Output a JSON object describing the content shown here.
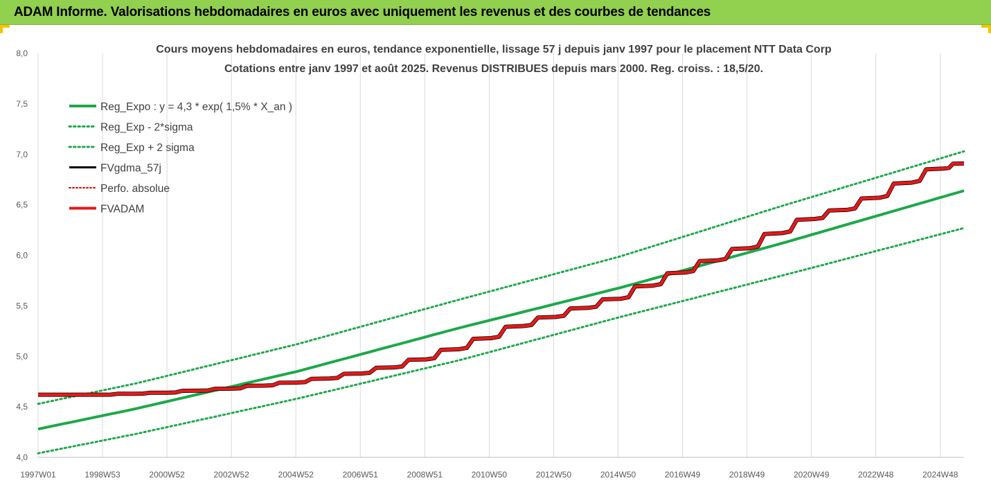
{
  "banner": {
    "title": "ADAM Informe. Valorisations hebdomadaires en euros avec uniquement les revenus et des courbes de tendances"
  },
  "colors": {
    "banner_bg": "#92d050",
    "corner_marks": "#f5c400",
    "reg_expo": "#1ea84a",
    "reg_bands": "#1ea84a",
    "fvgdma": "#000000",
    "perfo": "#e00000",
    "fvadam": "#e41a1a",
    "grid": "#d9d9d9"
  },
  "chart_data": {
    "type": "line",
    "title_lines": [
      "Cours moyens hebdomadaires en euros, tendance exponentielle, lissage 57 j depuis janv 1997 pour le placement NTT Data Corp",
      "Cotations entre janv 1997 et août 2025. Revenus DISTRIBUES depuis mars 2000. Reg. croiss. : 18,5/20."
    ],
    "xlabel": "",
    "ylabel": "",
    "ylim": [
      4.0,
      8.0
    ],
    "y_ticks": [
      "4,0",
      "4,5",
      "5,0",
      "5,5",
      "6,0",
      "6,5",
      "7,0",
      "7,5",
      "8,0"
    ],
    "x_tick_labels": [
      "1997W01",
      "1998W53",
      "2000W52",
      "2002W52",
      "2004W52",
      "2006W51",
      "2008W51",
      "2010W50",
      "2012W50",
      "2014W50",
      "2016W49",
      "2018W49",
      "2020W49",
      "2022W48",
      "2024W48"
    ],
    "x_range_years": [
      1997.0,
      2025.62
    ],
    "grid": "vertical",
    "legend_position": "top-left",
    "legend": [
      {
        "name": "Reg_Expo : y = 4,3 * exp( 1,5% *  X_an )",
        "style": "solid-green"
      },
      {
        "name": "Reg_Exp - 2*sigma",
        "style": "dotted-green"
      },
      {
        "name": "Reg_Exp + 2 sigma",
        "style": "dotted-green"
      },
      {
        "name": "FVgdma_57j",
        "style": "solid-black"
      },
      {
        "name": "Perfo. absolue",
        "style": "dotted-red"
      },
      {
        "name": "FVADAM",
        "style": "solid-red"
      }
    ],
    "series": [
      {
        "name": "Reg_Expo : y = 4,3 * exp( 1,5% *  X_an )",
        "x": [
          1997.0,
          2000.0,
          2005.0,
          2010.0,
          2015.0,
          2020.0,
          2025.62
        ],
        "values": [
          4.28,
          4.48,
          4.85,
          5.28,
          5.68,
          6.12,
          6.64
        ]
      },
      {
        "name": "Reg_Exp - 2*sigma",
        "x": [
          1997.0,
          2000.0,
          2005.0,
          2010.0,
          2015.0,
          2020.0,
          2025.62
        ],
        "values": [
          4.04,
          4.23,
          4.58,
          4.96,
          5.39,
          5.8,
          6.27
        ]
      },
      {
        "name": "Reg_Exp + 2 sigma",
        "x": [
          1997.0,
          2000.0,
          2005.0,
          2010.0,
          2015.0,
          2020.0,
          2025.62
        ],
        "values": [
          4.53,
          4.73,
          5.12,
          5.56,
          5.99,
          6.49,
          7.03
        ]
      },
      {
        "name": "FVADAM",
        "x": [
          1997.0,
          1998.0,
          1999.0,
          2000.0,
          2001.0,
          2002.0,
          2003.0,
          2004.0,
          2005.0,
          2006.0,
          2007.0,
          2008.0,
          2009.0,
          2010.0,
          2011.0,
          2012.0,
          2013.0,
          2014.0,
          2015.0,
          2016.0,
          2017.0,
          2018.0,
          2019.0,
          2020.0,
          2021.0,
          2022.0,
          2023.0,
          2024.0,
          2025.0,
          2025.62
        ],
        "values": [
          4.62,
          4.62,
          4.62,
          4.63,
          4.64,
          4.66,
          4.68,
          4.71,
          4.74,
          4.78,
          4.83,
          4.89,
          4.97,
          5.07,
          5.18,
          5.3,
          5.39,
          5.48,
          5.57,
          5.7,
          5.83,
          5.95,
          6.07,
          6.22,
          6.36,
          6.45,
          6.57,
          6.72,
          6.86,
          6.91
        ]
      }
    ]
  }
}
